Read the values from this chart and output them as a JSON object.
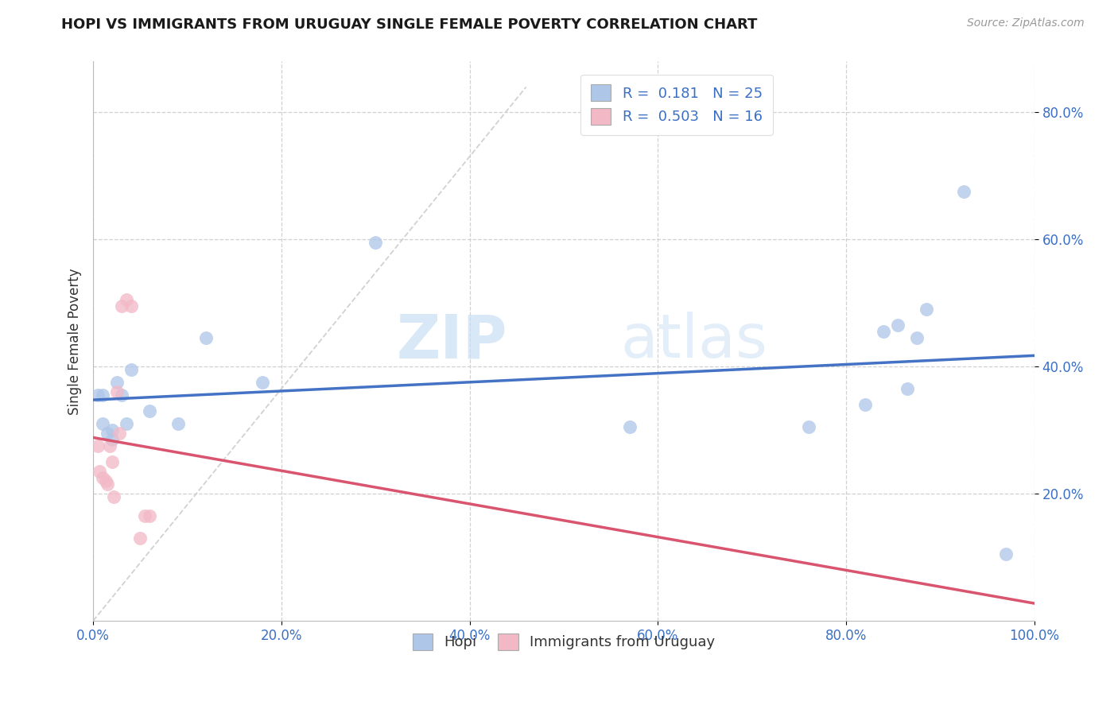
{
  "title": "HOPI VS IMMIGRANTS FROM URUGUAY SINGLE FEMALE POVERTY CORRELATION CHART",
  "source": "Source: ZipAtlas.com",
  "ylabel": "Single Female Poverty",
  "xlim": [
    0.0,
    1.0
  ],
  "ylim": [
    0.0,
    0.88
  ],
  "xtick_labels": [
    "0.0%",
    "20.0%",
    "40.0%",
    "60.0%",
    "80.0%",
    "100.0%"
  ],
  "xtick_vals": [
    0.0,
    0.2,
    0.4,
    0.6,
    0.8,
    1.0
  ],
  "ytick_labels": [
    "20.0%",
    "40.0%",
    "60.0%",
    "80.0%"
  ],
  "ytick_vals": [
    0.2,
    0.4,
    0.6,
    0.8
  ],
  "legend_label1": "Hopi",
  "legend_label2": "Immigrants from Uruguay",
  "R1": "0.181",
  "N1": "25",
  "R2": "0.503",
  "N2": "16",
  "hopi_color": "#aec6e8",
  "uruguay_color": "#f2b8c6",
  "hopi_line_color": "#4472C4",
  "uruguay_line_color": "#D9546E",
  "watermark_zip": "ZIP",
  "watermark_atlas": "atlas",
  "diag_line_color": "#cccccc",
  "hopi_x": [
    0.005,
    0.01,
    0.01,
    0.015,
    0.02,
    0.02,
    0.025,
    0.03,
    0.035,
    0.04,
    0.06,
    0.09,
    0.12,
    0.18,
    0.3,
    0.57,
    0.76,
    0.82,
    0.84,
    0.855,
    0.865,
    0.875,
    0.885,
    0.925,
    0.97
  ],
  "hopi_y": [
    0.355,
    0.355,
    0.31,
    0.295,
    0.3,
    0.285,
    0.375,
    0.355,
    0.31,
    0.395,
    0.33,
    0.31,
    0.445,
    0.375,
    0.595,
    0.305,
    0.305,
    0.34,
    0.455,
    0.465,
    0.365,
    0.445,
    0.49,
    0.675,
    0.105
  ],
  "uruguay_x": [
    0.005,
    0.007,
    0.01,
    0.013,
    0.015,
    0.018,
    0.02,
    0.022,
    0.025,
    0.028,
    0.03,
    0.035,
    0.04,
    0.05,
    0.055,
    0.06
  ],
  "uruguay_y": [
    0.275,
    0.235,
    0.225,
    0.22,
    0.215,
    0.275,
    0.25,
    0.195,
    0.36,
    0.295,
    0.495,
    0.505,
    0.495,
    0.13,
    0.165,
    0.165
  ]
}
